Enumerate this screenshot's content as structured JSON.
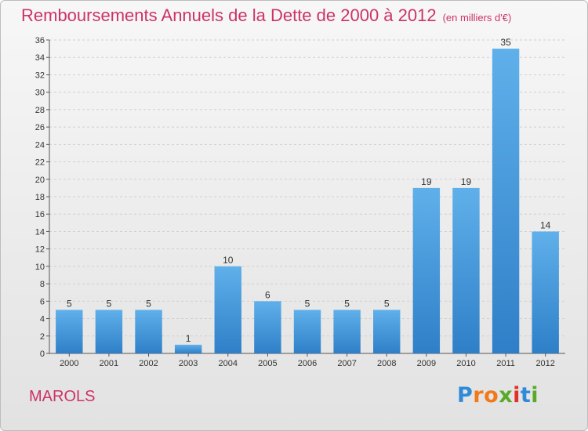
{
  "chart_data": {
    "type": "bar",
    "title": "Remboursements Annuels de la Dette de 2000 à 2012",
    "subtitle": "(en milliers d'€)",
    "categories": [
      "2000",
      "2001",
      "2002",
      "2003",
      "2004",
      "2005",
      "2006",
      "2007",
      "2008",
      "2009",
      "2010",
      "2011",
      "2012"
    ],
    "values": [
      5,
      5,
      5,
      1,
      10,
      6,
      5,
      5,
      5,
      19,
      19,
      35,
      14
    ],
    "ylim": [
      0,
      36
    ],
    "yticks": [
      0,
      2,
      4,
      6,
      8,
      10,
      12,
      14,
      16,
      18,
      20,
      22,
      24,
      26,
      28,
      30,
      32,
      34,
      36
    ],
    "grid": true,
    "xlabel": "",
    "ylabel": "",
    "bar_color": "#4a9fe0"
  },
  "footer": {
    "commune": "MAROLS",
    "logo_letters": [
      {
        "char": "P",
        "color": "#2f8ad8"
      },
      {
        "char": "r",
        "color": "#f07a1a"
      },
      {
        "char": "o",
        "color": "#f07a1a"
      },
      {
        "char": "x",
        "color": "#5aaa2a"
      },
      {
        "char": "i",
        "color": "#e0322a"
      },
      {
        "char": "t",
        "color": "#2f8ad8"
      },
      {
        "char": "i",
        "color": "#5aaa2a"
      }
    ]
  },
  "colors": {
    "title": "#cc3366",
    "commune": "#cc3366"
  }
}
